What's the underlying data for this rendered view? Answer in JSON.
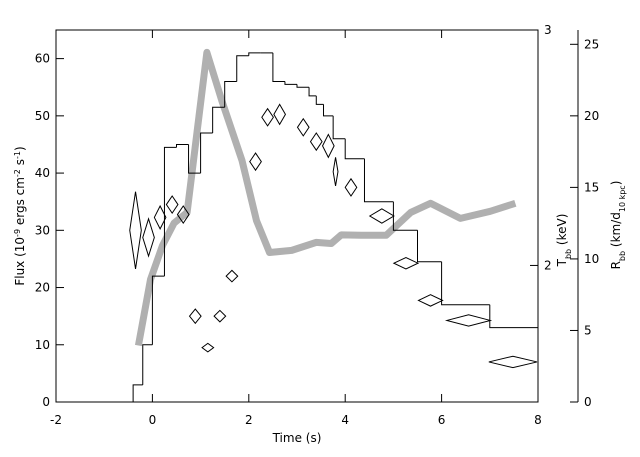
{
  "chart_data": {
    "type": "histogram",
    "xlabel": "Time (s)",
    "ylabel": [
      {
        "text": "Flux (10"
      },
      {
        "text": "-9",
        "sup": true
      },
      {
        "text": " ergs cm"
      },
      {
        "text": "-2",
        "sup": true
      },
      {
        "text": " s"
      },
      {
        "text": "-1",
        "sup": true
      },
      {
        "text": ")"
      }
    ],
    "y2label": [
      {
        "text": "T"
      },
      {
        "text": "bb",
        "sub": true
      },
      {
        "text": " (keV)"
      }
    ],
    "y3label": [
      {
        "text": "R"
      },
      {
        "text": "bb",
        "sub": true
      },
      {
        "text": " (km/d"
      },
      {
        "text": "10 kpc",
        "sub": true
      },
      {
        "text": ")"
      }
    ],
    "xlim": [
      -2,
      8
    ],
    "xticks": [
      -2,
      0,
      2,
      4,
      6,
      8
    ],
    "ylim": [
      0,
      65
    ],
    "yticks": [
      0,
      10,
      20,
      30,
      40,
      50,
      60
    ],
    "y2lim": [
      1.42,
      3
    ],
    "y2ticks": [
      2,
      3
    ],
    "y3lim": [
      0,
      26
    ],
    "y3ticks": [
      0,
      5,
      10,
      15,
      20,
      25
    ],
    "bins": [
      -0.4,
      -0.2,
      0,
      0.25,
      0.5,
      0.75,
      1.0,
      1.25,
      1.5,
      1.75,
      2.0,
      2.25,
      2.5,
      2.75,
      3.0,
      3.25,
      3.4,
      3.55,
      3.75,
      4.0,
      4.4,
      5.0,
      5.5,
      6.0,
      7.0,
      8.0
    ],
    "values": [
      3,
      10,
      22,
      44.5,
      45,
      40,
      47,
      51.5,
      56,
      60.5,
      61,
      61,
      56,
      55.5,
      55,
      53.5,
      52,
      50,
      46,
      42.5,
      35,
      30,
      24.5,
      17,
      13
    ],
    "color": "#000000",
    "series": [
      {
        "type": "diamond",
        "axis": "y3",
        "color": "#000000",
        "x": [
          -0.35,
          -0.08,
          0.16,
          0.41,
          0.64,
          0.89,
          1.15,
          1.4,
          1.65,
          2.14,
          2.39,
          2.64,
          3.13,
          3.4,
          3.65,
          3.8,
          4.12,
          4.76,
          5.26,
          5.77,
          6.56,
          7.48
        ],
        "xerr": [
          0.12,
          0.12,
          0.12,
          0.12,
          0.12,
          0.12,
          0.12,
          0.12,
          0.12,
          0.12,
          0.12,
          0.12,
          0.12,
          0.12,
          0.12,
          0.05,
          0.12,
          0.25,
          0.25,
          0.25,
          0.45,
          0.5
        ],
        "values": [
          12.0,
          11.5,
          12.9,
          13.8,
          13.1,
          6.0,
          3.8,
          6.0,
          8.8,
          16.8,
          19.9,
          20.1,
          19.2,
          18.2,
          17.9,
          16.1,
          15.0,
          13.0,
          9.7,
          7.1,
          5.7,
          2.8
        ],
        "yerr": [
          2.7,
          1.3,
          0.8,
          0.6,
          0.6,
          0.5,
          0.3,
          0.4,
          0.4,
          0.6,
          0.6,
          0.7,
          0.6,
          0.6,
          0.8,
          1.0,
          0.6,
          0.5,
          0.4,
          0.4,
          0.4,
          0.4
        ]
      },
      {
        "type": "band",
        "axis": "y2",
        "color": "#b0b0b0",
        "x": [
          -0.29,
          -0.04,
          0.21,
          0.45,
          0.72,
          1.13,
          1.44,
          1.86,
          2.16,
          2.43,
          2.89,
          3.4,
          3.71,
          3.92,
          4.33,
          4.85,
          5.36,
          5.77,
          6.39,
          7.01,
          7.53
        ],
        "values": [
          1.66,
          1.94,
          2.085,
          2.18,
          2.225,
          2.905,
          2.7,
          2.445,
          2.19,
          2.055,
          2.064,
          2.098,
          2.093,
          2.13,
          2.128,
          2.128,
          2.225,
          2.264,
          2.2,
          2.23,
          2.264
        ]
      }
    ]
  }
}
